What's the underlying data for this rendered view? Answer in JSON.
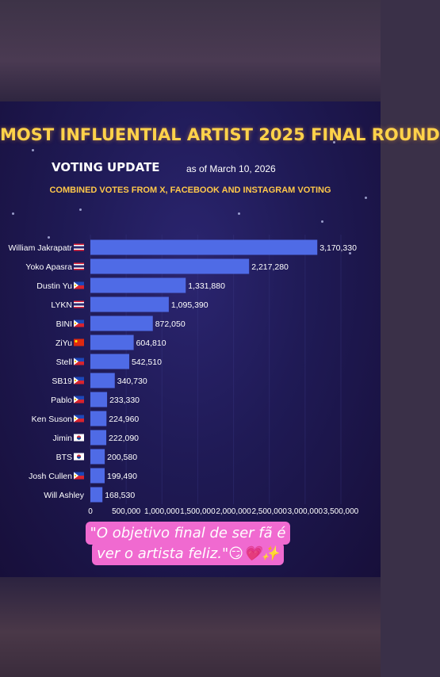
{
  "header": {
    "title": "MOST INFLUENTIAL ARTIST 2025 FINAL ROUND",
    "update_label": "VOTING UPDATE",
    "as_of": "as of March 10, 2026",
    "subtitle": "COMBINED VOTES FROM X, FACEBOOK AND INSTAGRAM VOTING"
  },
  "caption": {
    "text": "\"O objetivo final de ser fã é ver o artista feliz.\"😏💗✨"
  },
  "colors": {
    "bar": "#4f6be6",
    "title": "#ffd24a",
    "caption_bg": "#f06ad0"
  },
  "chart_data": {
    "type": "bar",
    "orientation": "horizontal",
    "categories": [
      {
        "name": "William Jakrapatr",
        "flag": "TH"
      },
      {
        "name": "Yoko Apasra",
        "flag": "TH"
      },
      {
        "name": "Dustin Yu",
        "flag": "PH"
      },
      {
        "name": "LYKN",
        "flag": "TH"
      },
      {
        "name": "BINI",
        "flag": "PH"
      },
      {
        "name": "ZiYu",
        "flag": "CN"
      },
      {
        "name": "Stell",
        "flag": "PH"
      },
      {
        "name": "SB19",
        "flag": "PH"
      },
      {
        "name": "Pablo",
        "flag": "PH"
      },
      {
        "name": "Ken Suson",
        "flag": "PH"
      },
      {
        "name": "Jimin",
        "flag": "KR"
      },
      {
        "name": "BTS",
        "flag": "KR"
      },
      {
        "name": "Josh Cullen",
        "flag": "PH"
      },
      {
        "name": "Will Ashley",
        "flag": ""
      }
    ],
    "values": [
      3170330,
      2217280,
      1331880,
      1095390,
      872050,
      604810,
      542510,
      340730,
      233330,
      224960,
      222090,
      200580,
      199490,
      168530
    ],
    "value_labels": [
      "3,170,330",
      "2,217,280",
      "1,331,880",
      "1,095,390",
      "872,050",
      "604,810",
      "542,510",
      "340,730",
      "233,330",
      "224,960",
      "222,090",
      "200,580",
      "199,490",
      "168,530"
    ],
    "xticks": [
      "0",
      "500,000",
      "1,000,000",
      "1,500,000",
      "2,000,000",
      "2,500,000",
      "3,000,000",
      "3,500,000"
    ],
    "xlim": [
      0,
      3500000
    ],
    "title": "MOST INFLUENTIAL ARTIST 2025 FINAL ROUND",
    "xlabel": "",
    "ylabel": ""
  }
}
